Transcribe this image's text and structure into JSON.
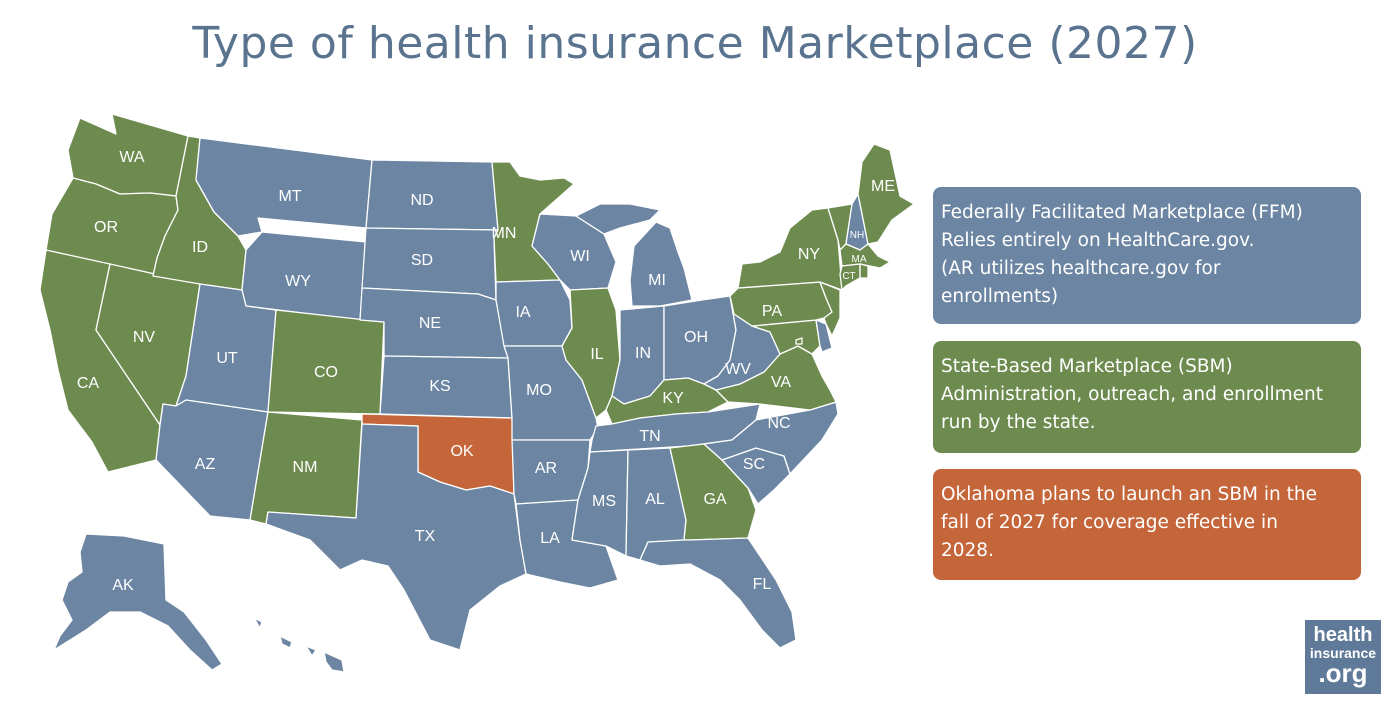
{
  "title": "Type of health insurance Marketplace (2027)",
  "colors": {
    "ffm": "#6b85a2",
    "sbm": "#6d8b4f",
    "oklahoma": "#c4653a"
  },
  "legend": [
    {
      "key": "ffm",
      "lines": [
        "Federally Facilitated Marketplace (FFM)",
        "Relies entirely on HealthCare.gov.",
        "(AR utilizes healthcare.gov for",
        "enrollments)"
      ]
    },
    {
      "key": "sbm",
      "lines": [
        "State-Based Marketplace (SBM)",
        "Administration, outreach, and enrollment",
        "run by the state."
      ]
    },
    {
      "key": "oklahoma",
      "lines": [
        "Oklahoma plans to launch an SBM in the",
        "fall of 2027 for coverage effective in",
        "2028."
      ]
    }
  ],
  "states": {
    "WA": "sbm",
    "OR": "sbm",
    "CA": "sbm",
    "NV": "sbm",
    "ID": "sbm",
    "CO": "sbm",
    "NM": "sbm",
    "MN": "sbm",
    "IL": "sbm",
    "KY": "sbm",
    "GA": "sbm",
    "PA": "sbm",
    "VA": "sbm",
    "NY": "sbm",
    "NJ": "sbm",
    "ME": "sbm",
    "VT": "sbm",
    "MA": "sbm",
    "CT": "sbm",
    "RI": "sbm",
    "MD": "sbm",
    "DC": "sbm",
    "MT": "ffm",
    "WY": "ffm",
    "UT": "ffm",
    "AZ": "ffm",
    "ND": "ffm",
    "SD": "ffm",
    "NE": "ffm",
    "KS": "ffm",
    "TX": "ffm",
    "IA": "ffm",
    "MO": "ffm",
    "AR": "ffm",
    "LA": "ffm",
    "WI": "ffm",
    "MI": "ffm",
    "IN": "ffm",
    "OH": "ffm",
    "WV": "ffm",
    "TN": "ffm",
    "MS": "ffm",
    "AL": "ffm",
    "FL": "ffm",
    "SC": "ffm",
    "NC": "ffm",
    "NH": "ffm",
    "DE": "ffm",
    "AK": "ffm",
    "HI": "ffm",
    "OK": "oklahoma"
  },
  "labels": [
    "WA",
    "OR",
    "CA",
    "NV",
    "ID",
    "MT",
    "WY",
    "UT",
    "AZ",
    "CO",
    "NM",
    "ND",
    "SD",
    "NE",
    "KS",
    "OK",
    "TX",
    "MN",
    "IA",
    "MO",
    "AR",
    "LA",
    "WI",
    "IL",
    "MI",
    "IN",
    "OH",
    "KY",
    "TN",
    "MS",
    "AL",
    "GA",
    "FL",
    "SC",
    "NC",
    "VA",
    "WV",
    "PA",
    "NY",
    "ME",
    "NH",
    "MA",
    "CT",
    "AK"
  ],
  "logo": {
    "line1": "health",
    "line2": "insurance",
    "line3": ".org"
  }
}
